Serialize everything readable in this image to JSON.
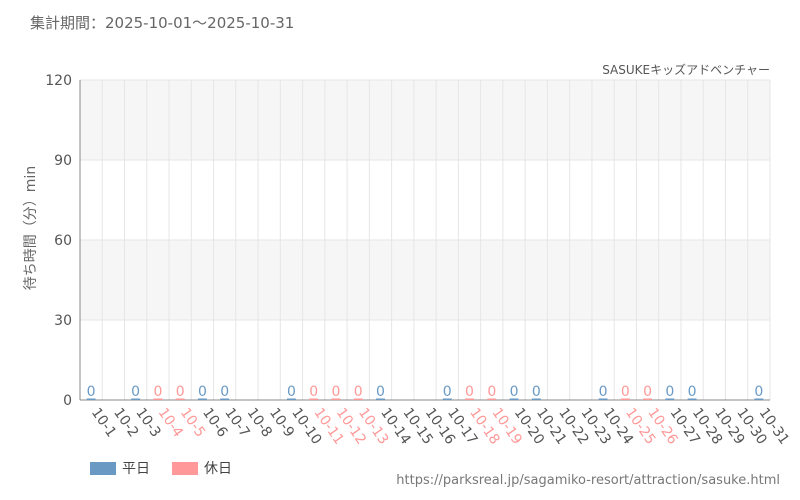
{
  "header": {
    "period": "集計期間：2025-10-01～2025-10-31",
    "subtitle": "SASUKEキッズアドベンチャー",
    "ylabel": "待ち時間（分）min"
  },
  "legend": {
    "weekday": "平日",
    "holiday": "休日"
  },
  "colors": {
    "weekday": "#6a9ac4",
    "holiday": "#ff9898",
    "grid": "#e6e6e6",
    "band": "#f6f6f6",
    "axis_label": "#555555"
  },
  "footer": {
    "source": "https://parksreal.jp/sagamiko-resort/attraction/sasuke.html"
  },
  "chart_data": {
    "type": "bar",
    "title": "",
    "xlabel": "",
    "ylabel": "待ち時間（分）min",
    "ylim": [
      0,
      120
    ],
    "yticks": [
      "0",
      "30",
      "60",
      "90",
      "120"
    ],
    "grid": true,
    "legend_position": "bottom-left",
    "categories": [
      "10-1",
      "10-2",
      "10-3",
      "10-4",
      "10-5",
      "10-6",
      "10-7",
      "10-8",
      "10-9",
      "10-10",
      "10-11",
      "10-12",
      "10-13",
      "10-14",
      "10-15",
      "10-16",
      "10-17",
      "10-18",
      "10-19",
      "10-20",
      "10-21",
      "10-22",
      "10-23",
      "10-24",
      "10-25",
      "10-26",
      "10-27",
      "10-28",
      "10-29",
      "10-30",
      "10-31"
    ],
    "day_type": [
      "weekday",
      "weekday",
      "weekday",
      "holiday",
      "holiday",
      "weekday",
      "weekday",
      "weekday",
      "weekday",
      "weekday",
      "holiday",
      "holiday",
      "holiday",
      "weekday",
      "weekday",
      "weekday",
      "weekday",
      "holiday",
      "holiday",
      "weekday",
      "weekday",
      "weekday",
      "weekday",
      "weekday",
      "holiday",
      "holiday",
      "weekday",
      "weekday",
      "weekday",
      "weekday",
      "weekday"
    ],
    "values": [
      0,
      null,
      0,
      0,
      0,
      0,
      0,
      null,
      null,
      0,
      0,
      0,
      0,
      0,
      null,
      null,
      0,
      0,
      0,
      0,
      0,
      null,
      null,
      0,
      0,
      0,
      0,
      0,
      null,
      null,
      0
    ],
    "data_labels": [
      "0",
      "",
      "0",
      "0",
      "0",
      "0",
      "0",
      "",
      "",
      "0",
      "0",
      "0",
      "0",
      "0",
      "",
      "",
      "0",
      "0",
      "0",
      "0",
      "0",
      "",
      "",
      "0",
      "0",
      "0",
      "0",
      "0",
      "",
      "",
      "0"
    ]
  }
}
